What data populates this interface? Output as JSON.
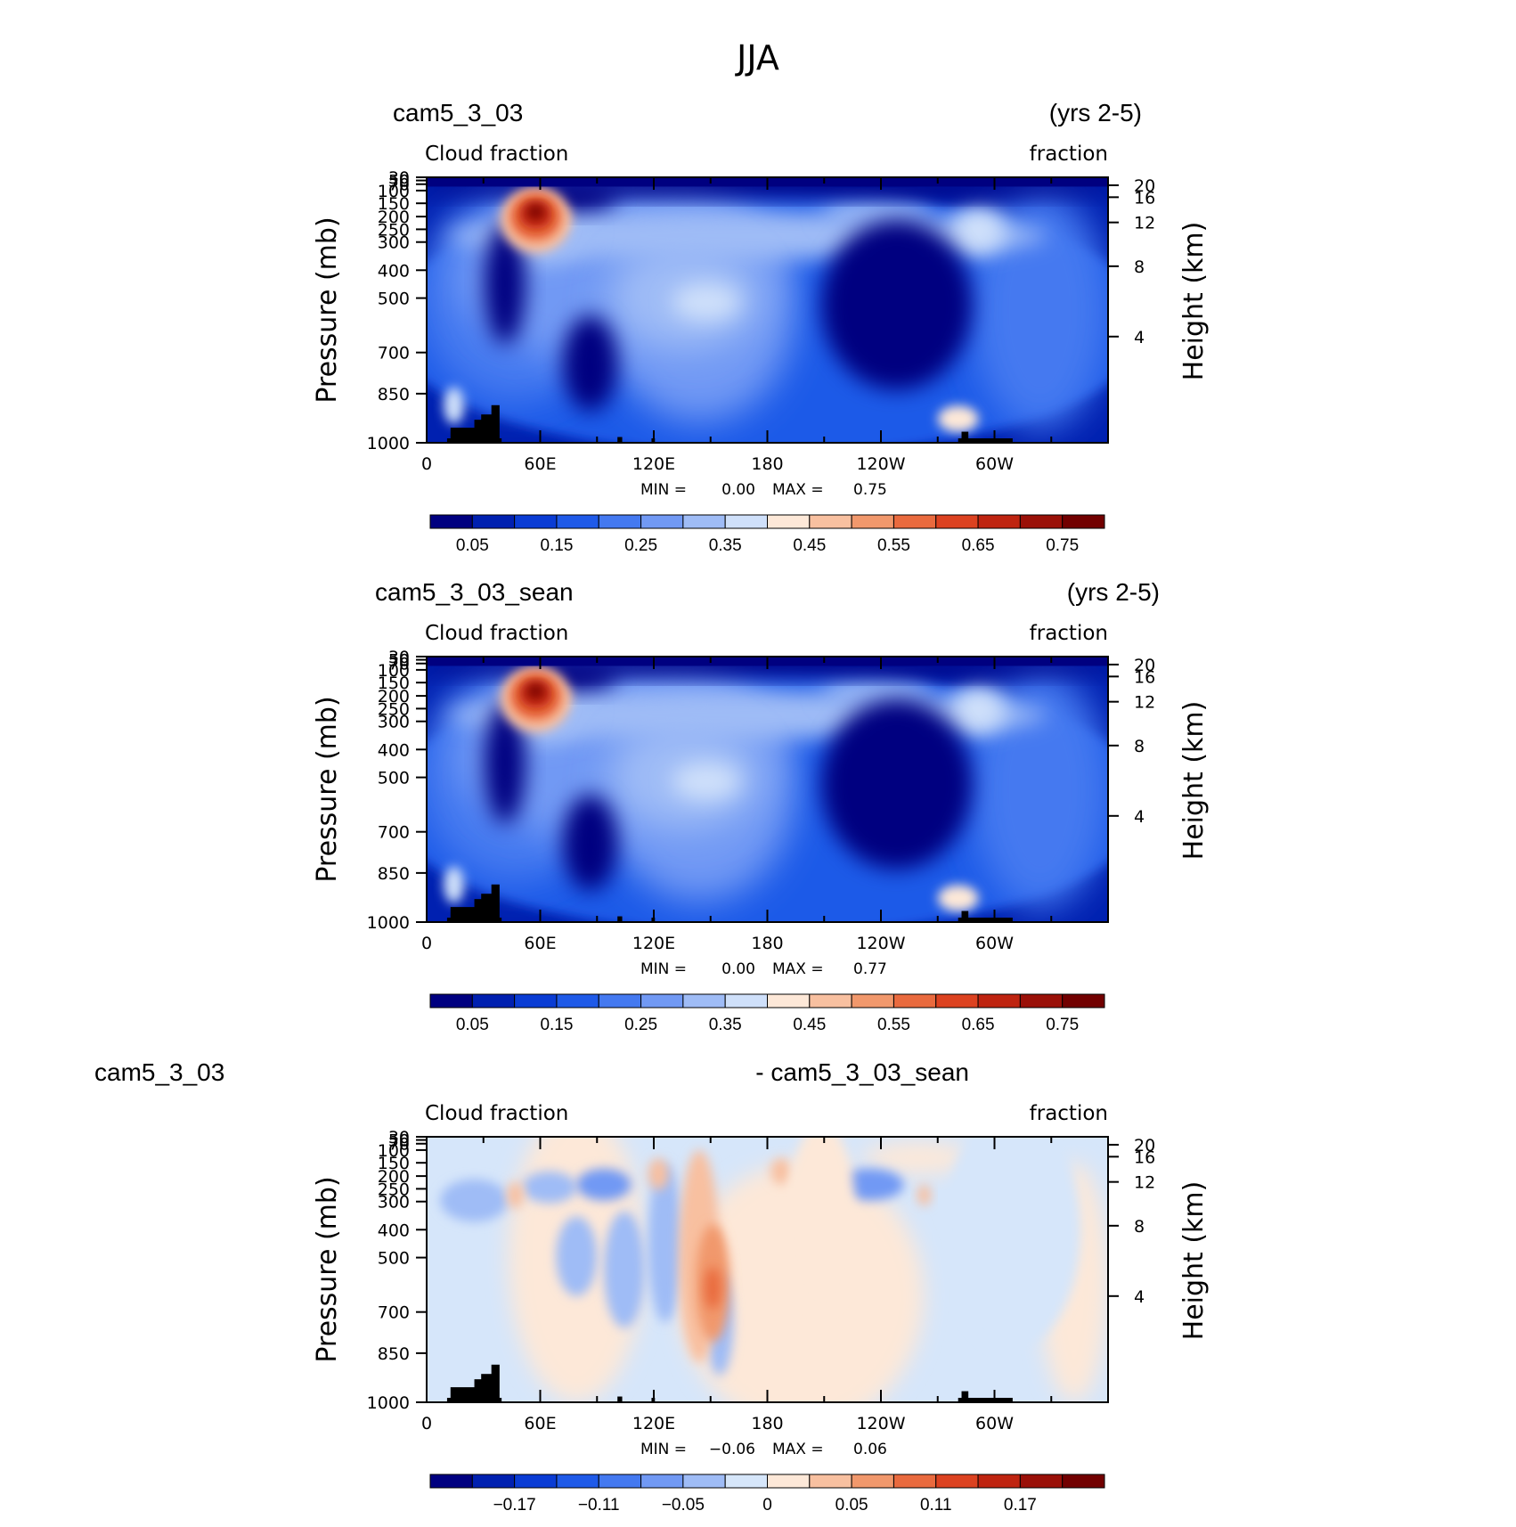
{
  "figure": {
    "title": "JJA"
  },
  "chart_data": [
    {
      "type": "heatmap",
      "left_title": "cam5_3_03",
      "right_title": "(yrs 2-5)",
      "subtitle_left": "Cloud fraction",
      "subtitle_right": "fraction",
      "ylabel": "Pressure (mb)",
      "ylabel_right": "Height (km)",
      "yticks": [
        "30",
        "50",
        "70",
        "100",
        "150",
        "200",
        "250",
        "300",
        "400",
        "500",
        "700",
        "850",
        "1000"
      ],
      "yticks_right": [
        "20",
        "16",
        "12",
        "8",
        "4"
      ],
      "xticks": [
        "0",
        "60E",
        "120E",
        "180",
        "120W",
        "60W"
      ],
      "min_label": "MIN =",
      "min_value": "0.00",
      "max_label": "MAX =",
      "max_value": "0.75",
      "colorbar": {
        "labels": [
          "0.05",
          "0.15",
          "0.25",
          "0.35",
          "0.45",
          "0.55",
          "0.65",
          "0.75"
        ],
        "colors": [
          "#000080",
          "#0020b0",
          "#0a3cd4",
          "#1f5ae8",
          "#4479f0",
          "#7199f4",
          "#9fbcf6",
          "#cfe0fa",
          "#fde8d8",
          "#f8c0a0",
          "#f1986c",
          "#e96a3e",
          "#dc4220",
          "#bf2410",
          "#9a1008",
          "#720000"
        ]
      }
    },
    {
      "type": "heatmap",
      "left_title": "cam5_3_03_sean",
      "right_title": "(yrs 2-5)",
      "subtitle_left": "Cloud fraction",
      "subtitle_right": "fraction",
      "ylabel": "Pressure (mb)",
      "ylabel_right": "Height (km)",
      "yticks": [
        "30",
        "50",
        "70",
        "100",
        "150",
        "200",
        "250",
        "300",
        "400",
        "500",
        "700",
        "850",
        "1000"
      ],
      "yticks_right": [
        "20",
        "16",
        "12",
        "8",
        "4"
      ],
      "xticks": [
        "0",
        "60E",
        "120E",
        "180",
        "120W",
        "60W"
      ],
      "min_label": "MIN =",
      "min_value": "0.00",
      "max_label": "MAX =",
      "max_value": "0.77",
      "colorbar": {
        "labels": [
          "0.05",
          "0.15",
          "0.25",
          "0.35",
          "0.45",
          "0.55",
          "0.65",
          "0.75"
        ],
        "colors": [
          "#000080",
          "#0020b0",
          "#0a3cd4",
          "#1f5ae8",
          "#4479f0",
          "#7199f4",
          "#9fbcf6",
          "#cfe0fa",
          "#fde8d8",
          "#f8c0a0",
          "#f1986c",
          "#e96a3e",
          "#dc4220",
          "#bf2410",
          "#9a1008",
          "#720000"
        ]
      }
    },
    {
      "type": "heatmap",
      "left_title": "cam5_3_03",
      "right_title": "- cam5_3_03_sean",
      "subtitle_left": "Cloud fraction",
      "subtitle_right": "fraction",
      "ylabel": "Pressure (mb)",
      "ylabel_right": "Height (km)",
      "yticks": [
        "30",
        "50",
        "70",
        "100",
        "150",
        "200",
        "250",
        "300",
        "400",
        "500",
        "700",
        "850",
        "1000"
      ],
      "yticks_right": [
        "20",
        "16",
        "12",
        "8",
        "4"
      ],
      "xticks": [
        "0",
        "60E",
        "120E",
        "180",
        "120W",
        "60W"
      ],
      "min_label": "MIN =",
      "min_value": "−0.06",
      "max_label": "MAX =",
      "max_value": "0.06",
      "colorbar": {
        "labels": [
          "−0.17",
          "−0.11",
          "−0.05",
          "0",
          "0.05",
          "0.11",
          "0.17"
        ],
        "colors": [
          "#000080",
          "#0020b0",
          "#0a3cd4",
          "#1f5ae8",
          "#4479f0",
          "#7199f4",
          "#9fbcf6",
          "#d6e6fa",
          "#fde8d8",
          "#f8c0a0",
          "#f1986c",
          "#e96a3e",
          "#dc4220",
          "#bf2410",
          "#9a1008",
          "#720000"
        ]
      }
    }
  ]
}
